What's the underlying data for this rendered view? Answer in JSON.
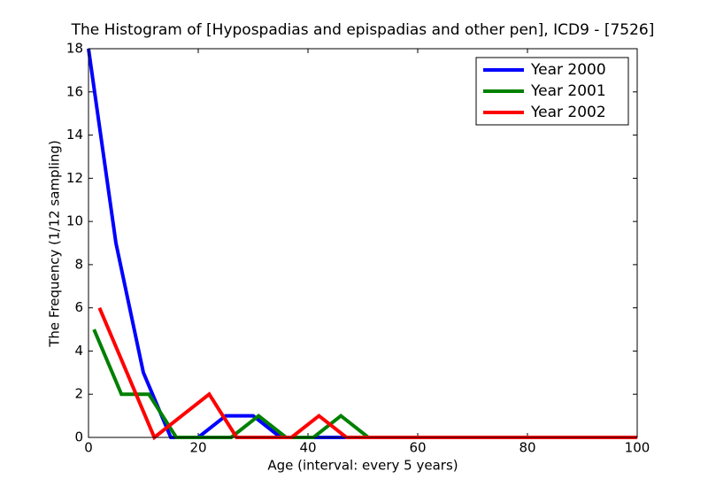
{
  "chart_data": {
    "type": "line",
    "title": "The Histogram of [Hypospadias and epispadias and other pen], ICD9 - [7526]",
    "x_label": "Age (interval: every 5 years)",
    "y_label": "The Frequency (1/12 sampling)",
    "xlim": [
      0,
      100
    ],
    "xticks": [
      0,
      20,
      40,
      60,
      80,
      100
    ],
    "ylim": [
      0,
      18
    ],
    "yticks": [
      0,
      2,
      4,
      6,
      8,
      10,
      12,
      14,
      16,
      18
    ],
    "legend": "upper right",
    "series": [
      {
        "name": "Year 2000",
        "color": "#0000ff",
        "x": [
          0,
          5,
          10,
          15,
          20,
          25,
          30,
          35,
          40,
          45,
          50,
          55,
          60,
          65,
          70,
          75,
          80,
          85,
          90,
          95,
          100
        ],
        "values": [
          18,
          9,
          3,
          0,
          0,
          1,
          1,
          0,
          0,
          0,
          0,
          0,
          0,
          0,
          0,
          0,
          0,
          0,
          0,
          0,
          0
        ]
      },
      {
        "name": "Year 2001",
        "color": "#008000",
        "x": [
          1,
          6,
          11,
          16,
          21,
          26,
          31,
          36,
          41,
          46,
          51,
          56,
          61,
          66,
          71,
          76,
          81,
          86,
          91,
          96,
          100
        ],
        "values": [
          5,
          2,
          2,
          0,
          0,
          0,
          1,
          0,
          0,
          1,
          0,
          0,
          0,
          0,
          0,
          0,
          0,
          0,
          0,
          0,
          0
        ]
      },
      {
        "name": "Year 2002",
        "color": "#ff0000",
        "x": [
          2,
          7,
          12,
          17,
          22,
          27,
          32,
          37,
          42,
          47,
          52,
          57,
          62,
          67,
          72,
          77,
          82,
          87,
          92,
          97,
          100
        ],
        "values": [
          6,
          3,
          0,
          1,
          2,
          0,
          0,
          0,
          1,
          0,
          0,
          0,
          0,
          0,
          0,
          0,
          0,
          0,
          0,
          0,
          0
        ]
      }
    ]
  }
}
